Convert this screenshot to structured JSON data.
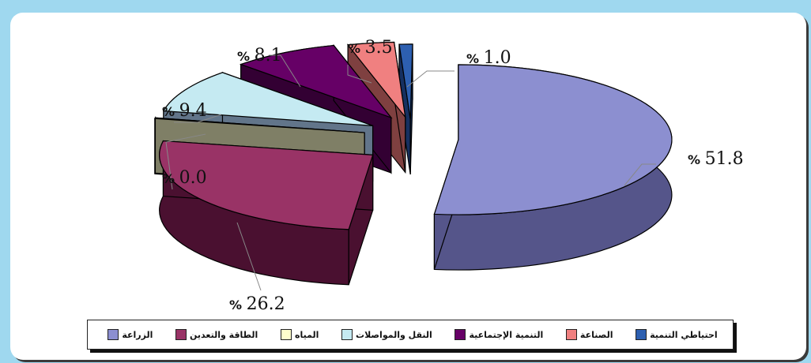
{
  "chart_data": {
    "type": "pie",
    "style": "3d-exploded",
    "title": "",
    "slices": [
      {
        "name": "الزراعة",
        "value": 51.8,
        "label": "51.8",
        "color": "#8c8fd0",
        "side_color": "#55558a"
      },
      {
        "name": "الطاقة والتعدين",
        "value": 26.2,
        "label": "26.2",
        "color": "#993366",
        "side_color": "#4a1030"
      },
      {
        "name": "المياه",
        "value": 0.0,
        "label": "0.0",
        "color": "#ffffcc",
        "side_color": "#7f7f66"
      },
      {
        "name": "النقل والمواصلات",
        "value": 9.4,
        "label": "9.4",
        "color": "#c5eaf2",
        "side_color": "#62758a"
      },
      {
        "name": "التنمية الإجتماعية",
        "value": 8.1,
        "label": "8.1",
        "color": "#660066",
        "side_color": "#330033"
      },
      {
        "name": "الصناعة",
        "value": 3.5,
        "label": "3.5",
        "color": "#f08080",
        "side_color": "#7f4040"
      },
      {
        "name": "احتياطي التنمية",
        "value": 1.0,
        "label": "1.0",
        "color": "#2d5fb0",
        "side_color": "#163060"
      }
    ],
    "percent_sign": "%",
    "legend_position": "bottom"
  }
}
